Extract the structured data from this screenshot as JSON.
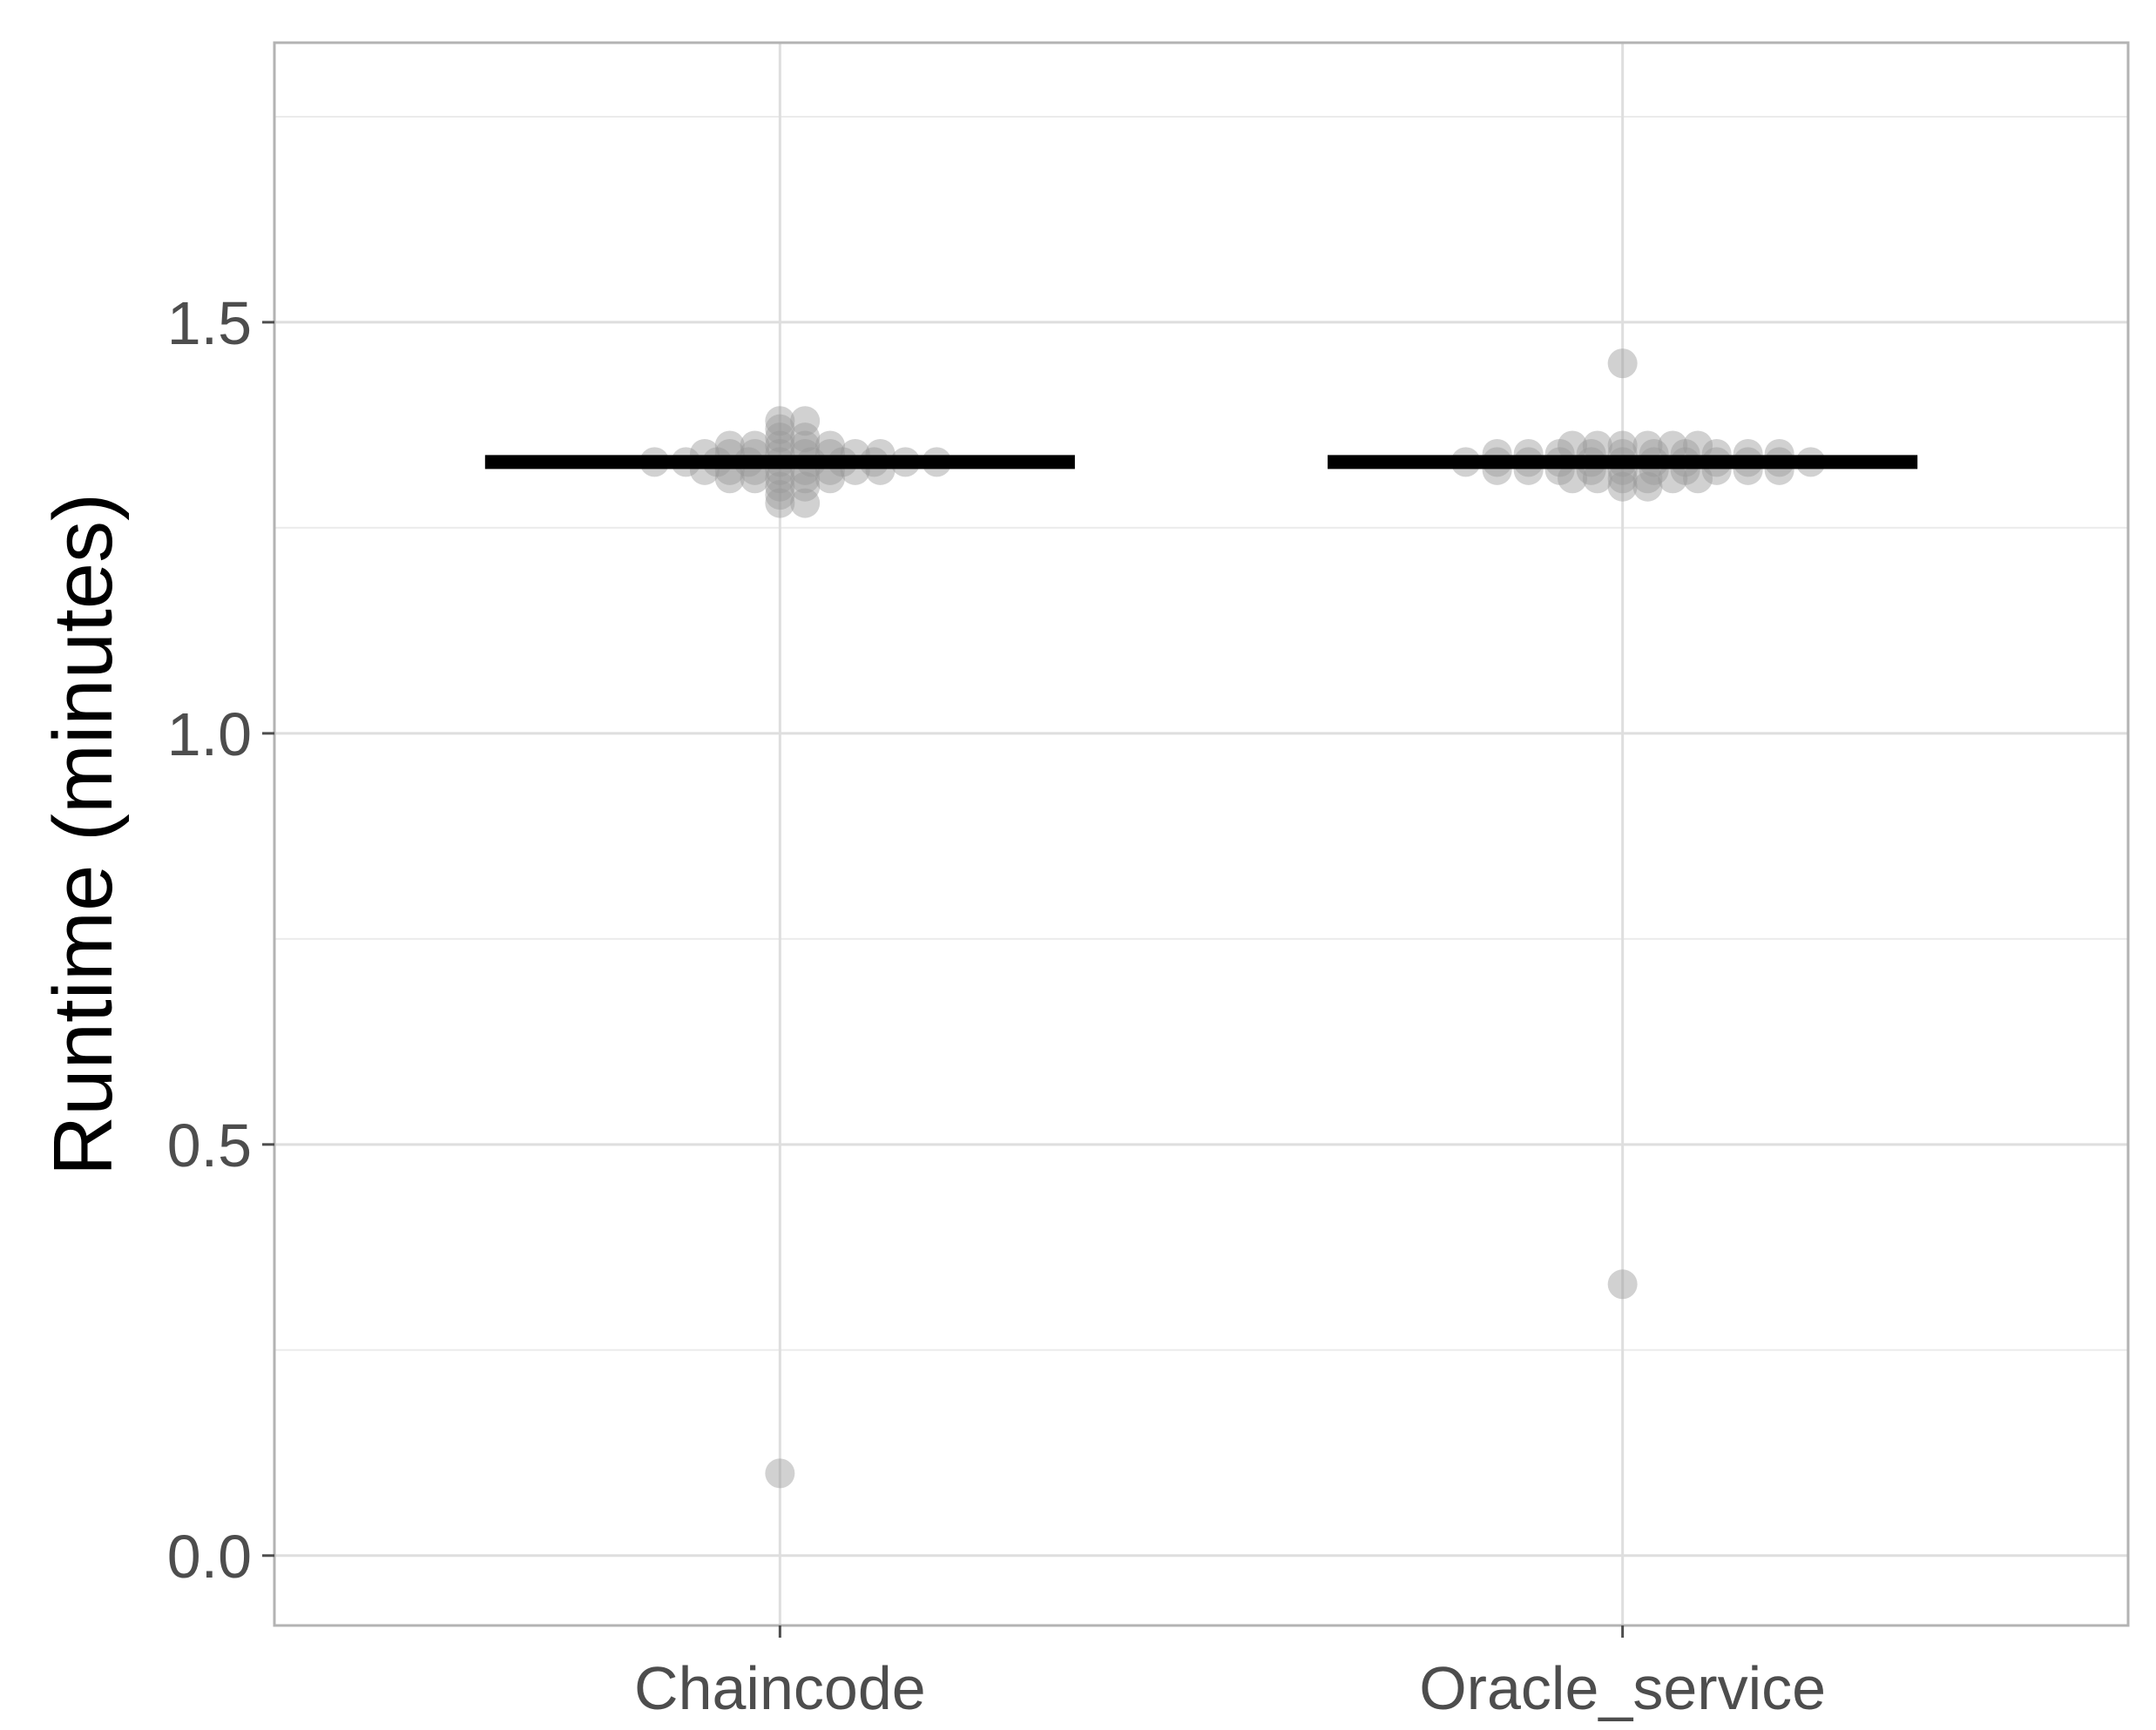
{
  "chart_data": {
    "type": "scatter",
    "subtype": "beeswarm with median line",
    "title": "",
    "xlabel": "",
    "ylabel": "Runtime (minutes)",
    "ylim": [
      -0.085,
      1.84
    ],
    "yticks": [
      0.0,
      0.5,
      1.0,
      1.5
    ],
    "ytick_labels": [
      "0.0",
      "0.5",
      "1.0",
      "1.5"
    ],
    "grid": true,
    "legend": "none",
    "categories": [
      "Chaincode",
      "Oracle_service"
    ],
    "point_color": "#999999",
    "median_color": "#000000",
    "groups": [
      {
        "name": "Chaincode",
        "median": 1.33,
        "values": [
          1.33,
          1.33,
          1.33,
          1.33,
          1.33,
          1.33,
          1.33,
          1.33,
          1.33,
          1.33,
          1.34,
          1.34,
          1.34,
          1.34,
          1.34,
          1.34,
          1.34,
          1.34,
          1.32,
          1.32,
          1.32,
          1.32,
          1.32,
          1.32,
          1.32,
          1.32,
          1.35,
          1.35,
          1.35,
          1.35,
          1.35,
          1.31,
          1.31,
          1.31,
          1.31,
          1.31,
          1.36,
          1.36,
          1.37,
          1.38,
          1.38,
          1.3,
          1.3,
          1.29,
          1.28,
          1.28,
          0.1
        ]
      },
      {
        "name": "Oracle_service",
        "median": 1.33,
        "values": [
          1.33,
          1.33,
          1.33,
          1.33,
          1.33,
          1.33,
          1.33,
          1.33,
          1.33,
          1.33,
          1.33,
          1.33,
          1.34,
          1.34,
          1.34,
          1.34,
          1.34,
          1.34,
          1.34,
          1.34,
          1.34,
          1.34,
          1.32,
          1.32,
          1.32,
          1.32,
          1.32,
          1.32,
          1.32,
          1.32,
          1.32,
          1.32,
          1.35,
          1.35,
          1.35,
          1.35,
          1.35,
          1.35,
          1.31,
          1.31,
          1.31,
          1.31,
          1.31,
          1.31,
          1.3,
          1.3,
          1.45,
          0.33
        ]
      }
    ]
  }
}
